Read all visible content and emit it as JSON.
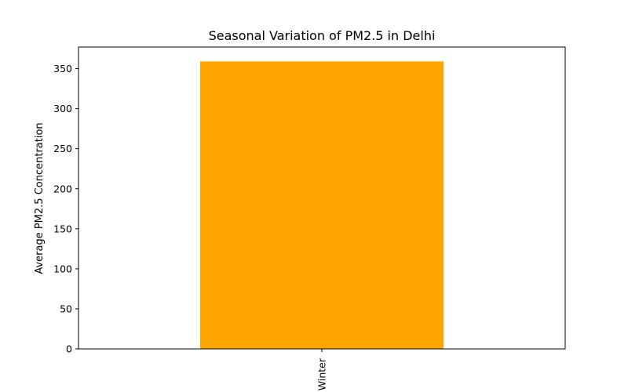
{
  "chart_data": {
    "type": "bar",
    "title": "Seasonal Variation of PM2.5 in Delhi",
    "xlabel": "",
    "ylabel": "Average PM2.5 Concentration",
    "categories": [
      "Winter"
    ],
    "values": [
      359
    ],
    "ylim": [
      0,
      377
    ],
    "yticks": [
      0,
      50,
      100,
      150,
      200,
      250,
      300,
      350
    ],
    "grid": false,
    "legend": "none",
    "bar_color": "#ffa500"
  }
}
